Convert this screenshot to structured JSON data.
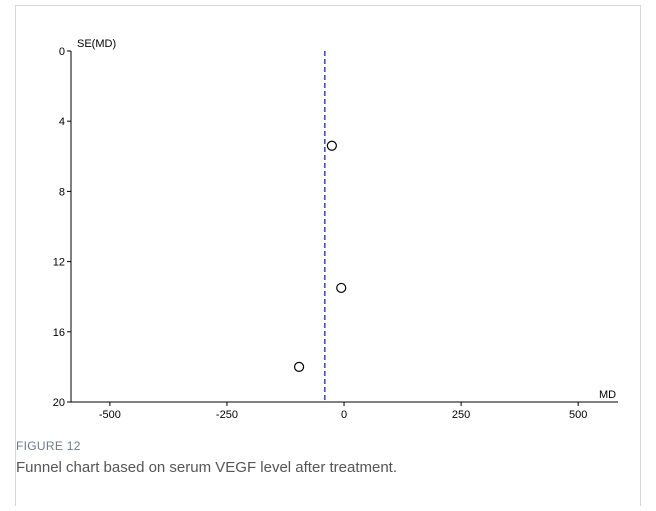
{
  "chart_data": {
    "type": "scatter",
    "y_label": "SE(MD)",
    "x_label": "MD",
    "figure_label": "FIGURE 12",
    "caption": "Funnel chart based on serum VEGF level after treatment.",
    "x": [
      -26,
      -6,
      -96
    ],
    "values": [
      5.4,
      13.5,
      18.0
    ],
    "xlim": [
      -583,
      585
    ],
    "xticks": [
      -500,
      -250,
      0,
      250,
      500
    ],
    "ylim": [
      0,
      20
    ],
    "yticks": [
      0,
      4,
      8,
      12,
      16,
      20
    ],
    "y_inverted": true,
    "reference_line": -41,
    "reference_color": "#2222bb",
    "marker_color": "#000000"
  }
}
